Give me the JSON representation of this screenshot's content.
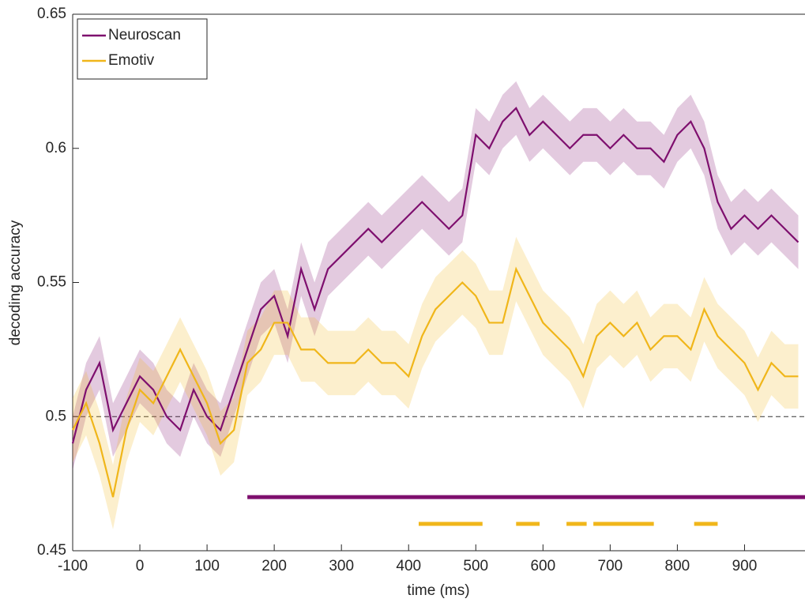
{
  "chart_data": {
    "type": "line",
    "xlabel": "time (ms)",
    "ylabel": "decoding accuracy",
    "x": [
      -100,
      -80,
      -60,
      -40,
      -20,
      0,
      20,
      40,
      60,
      80,
      100,
      120,
      140,
      160,
      180,
      200,
      220,
      240,
      260,
      280,
      300,
      320,
      340,
      360,
      380,
      400,
      420,
      440,
      460,
      480,
      500,
      520,
      540,
      560,
      580,
      600,
      620,
      640,
      660,
      680,
      700,
      720,
      740,
      760,
      780,
      800,
      820,
      840,
      860,
      880,
      900,
      920,
      940,
      960,
      980
    ],
    "series": [
      {
        "name": "Neuroscan",
        "color": "#7e0f6e",
        "error": 0.01,
        "sig_y": 0.47,
        "sig_spans": [
          [
            160,
            990
          ]
        ],
        "values": [
          0.49,
          0.51,
          0.52,
          0.495,
          0.505,
          0.515,
          0.51,
          0.5,
          0.495,
          0.51,
          0.5,
          0.495,
          0.51,
          0.525,
          0.54,
          0.545,
          0.53,
          0.555,
          0.54,
          0.555,
          0.56,
          0.565,
          0.57,
          0.565,
          0.57,
          0.575,
          0.58,
          0.575,
          0.57,
          0.575,
          0.605,
          0.6,
          0.61,
          0.615,
          0.605,
          0.61,
          0.605,
          0.6,
          0.605,
          0.605,
          0.6,
          0.605,
          0.6,
          0.6,
          0.595,
          0.605,
          0.61,
          0.6,
          0.58,
          0.57,
          0.575,
          0.57,
          0.575,
          0.57,
          0.565
        ]
      },
      {
        "name": "Emotiv",
        "color": "#f0b61a",
        "error": 0.012,
        "sig_y": 0.46,
        "sig_spans": [
          [
            415,
            510
          ],
          [
            560,
            595
          ],
          [
            635,
            665
          ],
          [
            675,
            765
          ],
          [
            825,
            860
          ]
        ],
        "values": [
          0.495,
          0.505,
          0.49,
          0.47,
          0.495,
          0.51,
          0.505,
          0.515,
          0.525,
          0.515,
          0.505,
          0.49,
          0.495,
          0.52,
          0.525,
          0.535,
          0.535,
          0.525,
          0.525,
          0.52,
          0.52,
          0.52,
          0.525,
          0.52,
          0.52,
          0.515,
          0.53,
          0.54,
          0.545,
          0.55,
          0.545,
          0.535,
          0.535,
          0.555,
          0.545,
          0.535,
          0.53,
          0.525,
          0.515,
          0.53,
          0.535,
          0.53,
          0.535,
          0.525,
          0.53,
          0.53,
          0.525,
          0.54,
          0.53,
          0.525,
          0.52,
          0.51,
          0.52,
          0.515,
          0.515
        ]
      }
    ],
    "hline": 0.5,
    "xlim": [
      -100,
      990
    ],
    "ylim": [
      0.45,
      0.65
    ],
    "xticks": [
      -100,
      0,
      100,
      200,
      300,
      400,
      500,
      600,
      700,
      800,
      900
    ],
    "yticks": [
      0.45,
      0.5,
      0.55,
      0.6,
      0.65
    ],
    "legend": "top-left"
  }
}
